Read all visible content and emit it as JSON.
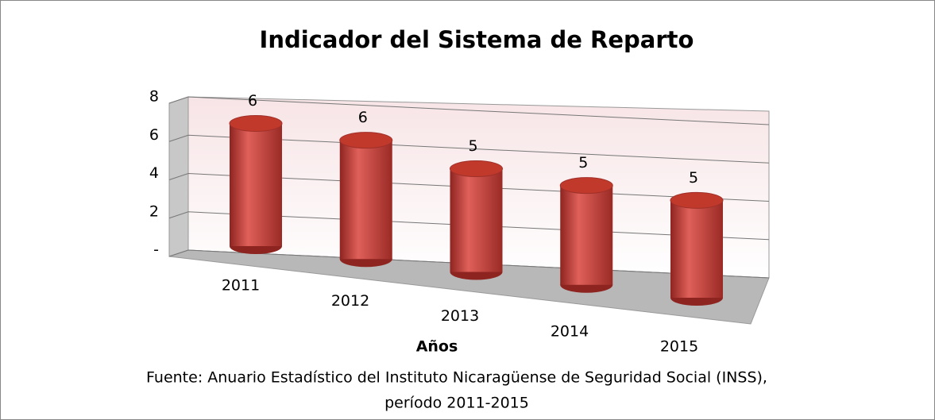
{
  "chart_data": {
    "type": "bar3d",
    "title": "Indicador del Sistema de Reparto",
    "x_label": "Años",
    "source": [
      "Fuente: Anuario Estadístico del Instituto Nicaragüense de Seguridad Social (INSS),",
      "período 2011-2015"
    ],
    "categories": [
      "2011",
      "2012",
      "2013",
      "2014",
      "2015"
    ],
    "values": [
      6.3,
      6.1,
      5.3,
      5.1,
      5.0
    ],
    "value_labels": [
      "6",
      "6",
      "5",
      "5",
      "5"
    ],
    "color": "#c0392b",
    "ylim": [
      0,
      8
    ],
    "yticks": [
      {
        "value": 0,
        "label": "-"
      },
      2,
      4,
      6,
      8
    ],
    "grid": true
  }
}
